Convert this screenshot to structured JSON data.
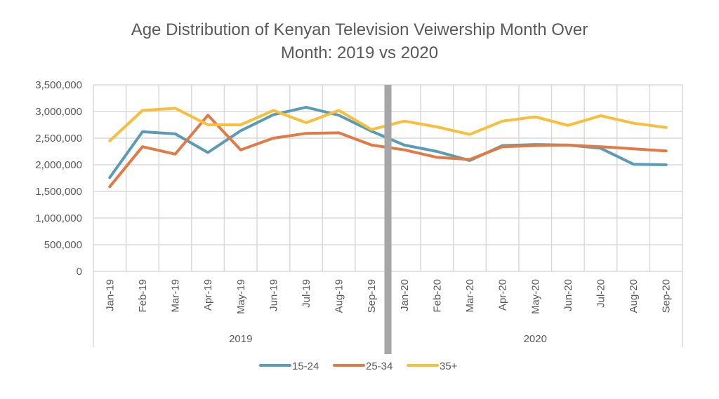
{
  "chart_data": {
    "type": "line",
    "title_lines": [
      "Age Distribution of Kenyan Television Veiwership Month Over",
      "Month: 2019 vs 2020"
    ],
    "categories": [
      "Jan-19",
      "Feb-19",
      "Mar-19",
      "Apr-19",
      "May-19",
      "Jun-19",
      "Jul-19",
      "Aug-19",
      "Sep-19",
      "Jan-20",
      "Feb-20",
      "Mar-20",
      "Apr-20",
      "May-20",
      "Jun-20",
      "Jul-20",
      "Aug-20",
      "Sep-20"
    ],
    "groups": [
      {
        "label": "2019",
        "count": 9
      },
      {
        "label": "2020",
        "count": 9
      }
    ],
    "ylim": [
      0,
      3500000
    ],
    "yticks": [
      0,
      500000,
      1000000,
      1500000,
      2000000,
      2500000,
      3000000,
      3500000
    ],
    "ytick_labels": [
      "0",
      "500,000",
      "1,000,000",
      "1,500,000",
      "2,000,000",
      "2,500,000",
      "3,000,000",
      "3,500,000"
    ],
    "grid": true,
    "legend_position": "bottom",
    "divider_between": [
      "Sep-19",
      "Jan-20"
    ],
    "divider_color": "#A6A6A6",
    "series": [
      {
        "name": "15-24",
        "color": "#5B9BB5",
        "values": [
          1760000,
          2620000,
          2580000,
          2230000,
          2640000,
          2940000,
          3080000,
          2930000,
          2630000,
          2370000,
          2250000,
          2080000,
          2360000,
          2380000,
          2370000,
          2310000,
          2010000,
          2000000
        ]
      },
      {
        "name": "25-34",
        "color": "#E07B45",
        "values": [
          1590000,
          2340000,
          2200000,
          2930000,
          2280000,
          2500000,
          2590000,
          2600000,
          2370000,
          2280000,
          2140000,
          2100000,
          2340000,
          2360000,
          2370000,
          2340000,
          2300000,
          2260000
        ]
      },
      {
        "name": "35+",
        "color": "#F8BE3C",
        "values": [
          2450000,
          3020000,
          3060000,
          2750000,
          2750000,
          3020000,
          2790000,
          3020000,
          2660000,
          2820000,
          2710000,
          2570000,
          2820000,
          2900000,
          2740000,
          2920000,
          2780000,
          2700000
        ]
      }
    ]
  }
}
